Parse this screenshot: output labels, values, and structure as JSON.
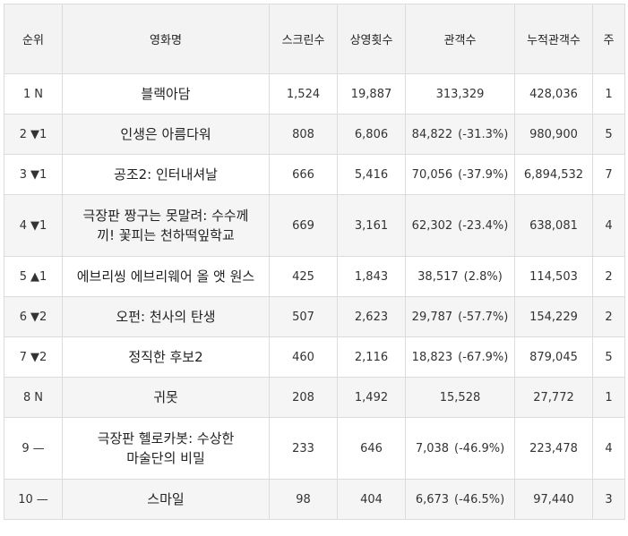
{
  "headers": {
    "rank": "순위",
    "title": "영화명",
    "screens": "스크린수",
    "showings": "상영횟수",
    "audience": "관객수",
    "cumulative": "누적관객수",
    "weeks": "주"
  },
  "rows": [
    {
      "rank": "1",
      "change": "N",
      "title": "블랙아담",
      "screens": "1,524",
      "showings": "19,887",
      "audience": "313,329",
      "audience_change": "",
      "cumulative": "428,036",
      "weeks": "1"
    },
    {
      "rank": "2",
      "change": "▼1",
      "title": "인생은 아름다워",
      "screens": "808",
      "showings": "6,806",
      "audience": "84,822",
      "audience_change": "(-31.3%)",
      "cumulative": "980,900",
      "weeks": "5"
    },
    {
      "rank": "3",
      "change": "▼1",
      "title": "공조2: 인터내셔날",
      "screens": "666",
      "showings": "5,416",
      "audience": "70,056",
      "audience_change": "(-37.9%)",
      "cumulative": "6,894,532",
      "weeks": "7"
    },
    {
      "rank": "4",
      "change": "▼1",
      "title": "극장판 짱구는 못말려: 수수께끼! 꽃피는 천하떡잎학교",
      "title_line1": "극장판 짱구는 못말려: 수수께",
      "title_line2": "끼! 꽃피는 천하떡잎학교",
      "screens": "669",
      "showings": "3,161",
      "audience": "62,302",
      "audience_change": "(-23.4%)",
      "cumulative": "638,081",
      "weeks": "4"
    },
    {
      "rank": "5",
      "change": "▲1",
      "title": "에브리씽 에브리웨어 올 앳 원스",
      "screens": "425",
      "showings": "1,843",
      "audience": "38,517",
      "audience_change": "(2.8%)",
      "cumulative": "114,503",
      "weeks": "2"
    },
    {
      "rank": "6",
      "change": "▼2",
      "title": "오펀: 천사의 탄생",
      "screens": "507",
      "showings": "2,623",
      "audience": "29,787",
      "audience_change": "(-57.7%)",
      "cumulative": "154,229",
      "weeks": "2"
    },
    {
      "rank": "7",
      "change": "▼2",
      "title": "정직한 후보2",
      "screens": "460",
      "showings": "2,116",
      "audience": "18,823",
      "audience_change": "(-67.9%)",
      "cumulative": "879,045",
      "weeks": "5"
    },
    {
      "rank": "8",
      "change": "N",
      "title": "귀못",
      "screens": "208",
      "showings": "1,492",
      "audience": "15,528",
      "audience_change": "",
      "cumulative": "27,772",
      "weeks": "1"
    },
    {
      "rank": "9",
      "change": "—",
      "title": "극장판 헬로카봇: 수상한 마술단의 비밀",
      "title_line1": "극장판 헬로카봇: 수상한",
      "title_line2": "마술단의 비밀",
      "screens": "233",
      "showings": "646",
      "audience": "7,038",
      "audience_change": "(-46.9%)",
      "cumulative": "223,478",
      "weeks": "4"
    },
    {
      "rank": "10",
      "change": "—",
      "title": "스마일",
      "screens": "98",
      "showings": "404",
      "audience": "6,673",
      "audience_change": "(-46.5%)",
      "cumulative": "97,440",
      "weeks": "3"
    }
  ]
}
